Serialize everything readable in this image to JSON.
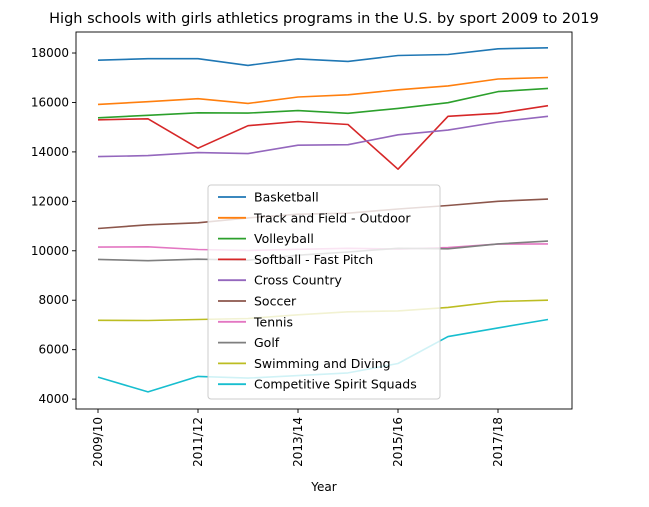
{
  "chart_data": {
    "type": "line",
    "title": "High schools with girls athletics programs in the U.S. by sport 2009 to 2019",
    "xlabel": "Year",
    "ylabel": "",
    "categories": [
      "2009/10",
      "2010/11",
      "2011/12",
      "2012/13",
      "2013/14",
      "2014/15",
      "2015/16",
      "2016/17",
      "2017/18",
      "2018/19"
    ],
    "x_tick_labels": [
      "2009/10",
      "2011/12",
      "2013/14",
      "2015/16",
      "2017/18"
    ],
    "ylim": [
      3600,
      18850
    ],
    "y_ticks": [
      4000,
      6000,
      8000,
      10000,
      12000,
      14000,
      16000,
      18000
    ],
    "grid": false,
    "legend_position": "center-bottom",
    "series": [
      {
        "name": "Basketball",
        "color": "#1f77b4",
        "values": [
          17710,
          17770,
          17770,
          17500,
          17760,
          17660,
          17900,
          17940,
          18170,
          18210
        ]
      },
      {
        "name": "Track and Field - Outdoor",
        "color": "#ff7f0e",
        "values": [
          15920,
          16030,
          16150,
          15960,
          16220,
          16310,
          16510,
          16670,
          16950,
          17010
        ]
      },
      {
        "name": "Volleyball",
        "color": "#2ca02c",
        "values": [
          15380,
          15480,
          15580,
          15570,
          15670,
          15560,
          15760,
          15990,
          16440,
          16570
        ]
      },
      {
        "name": "Softball - Fast Pitch",
        "color": "#d62728",
        "values": [
          15300,
          15340,
          14150,
          15060,
          15230,
          15110,
          13300,
          15440,
          15560,
          15870
        ]
      },
      {
        "name": "Cross Country",
        "color": "#9467bd",
        "values": [
          13810,
          13850,
          13970,
          13930,
          14270,
          14290,
          14690,
          14880,
          15210,
          15440
        ]
      },
      {
        "name": "Soccer",
        "color": "#8c564b",
        "values": [
          10900,
          11050,
          11130,
          11330,
          11480,
          11520,
          11690,
          11830,
          12000,
          12090
        ]
      },
      {
        "name": "Tennis",
        "color": "#e377c2",
        "values": [
          10150,
          10160,
          10050,
          10010,
          10060,
          10100,
          10070,
          10130,
          10270,
          10280
        ]
      },
      {
        "name": "Golf",
        "color": "#7f7f7f",
        "values": [
          9650,
          9600,
          9660,
          9620,
          9820,
          9950,
          10100,
          10080,
          10280,
          10390
        ]
      },
      {
        "name": "Swimming and Diving",
        "color": "#bcbd22",
        "values": [
          7190,
          7180,
          7220,
          7260,
          7410,
          7530,
          7570,
          7710,
          7950,
          8000
        ]
      },
      {
        "name": "Competitive Spirit Squads",
        "color": "#17becf",
        "values": [
          4890,
          4290,
          4920,
          4850,
          4950,
          5060,
          5440,
          6530,
          6880,
          7220
        ]
      }
    ]
  }
}
